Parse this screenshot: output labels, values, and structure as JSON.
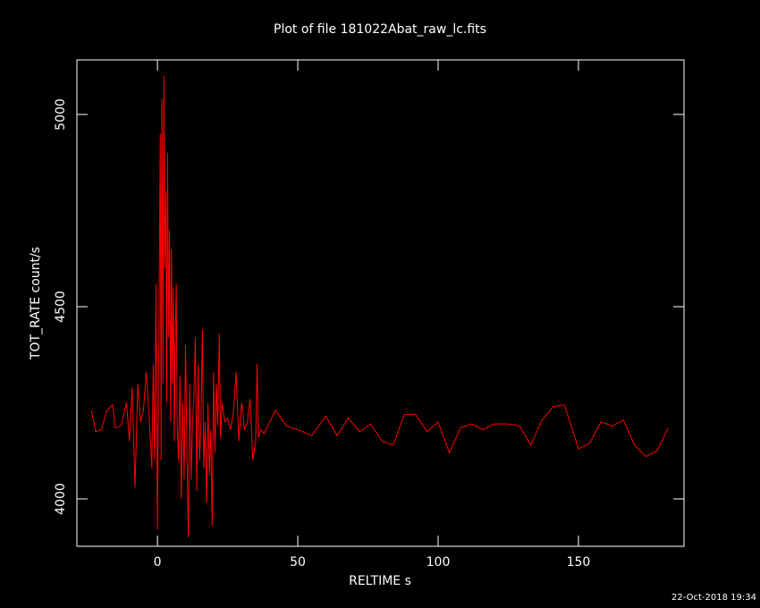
{
  "chart_data": {
    "type": "line",
    "title": "Plot of file 181022Abat_raw_lc.fits",
    "x_label": "RELTIME  s",
    "y_label": "TOT_RATE  count/s",
    "footer": "22-Oct-2018 19:34",
    "xlim": [
      -28.7,
      187.6
    ],
    "ylim": [
      3876.7,
      5141.9
    ],
    "xticks": [
      0,
      50,
      100,
      150
    ],
    "yticks": [
      4000,
      4500,
      5000
    ],
    "x": [
      -23.5,
      -22,
      -20,
      -18,
      -16,
      -15,
      -13,
      -11,
      -10,
      -9,
      -8,
      -7,
      -6,
      -5,
      -4,
      -3,
      -2,
      -1.5,
      -1,
      -0.5,
      0,
      0.5,
      1,
      1.3,
      1.6,
      2,
      2.3,
      2.6,
      3,
      3.3,
      3.6,
      4,
      4.3,
      4.7,
      5,
      5.3,
      5.7,
      6,
      6.3,
      6.7,
      7,
      7.5,
      8,
      8.5,
      9,
      9.5,
      10,
      10.5,
      11,
      11.5,
      12,
      12.5,
      13,
      13.5,
      14,
      14.5,
      15,
      15.5,
      16,
      16.5,
      17,
      17.5,
      18,
      18.5,
      19,
      19.5,
      20,
      20.5,
      21,
      21.5,
      22,
      22.5,
      23,
      24,
      25,
      26,
      27,
      28,
      29,
      30,
      31,
      32,
      33,
      34,
      35,
      35.5,
      36,
      37,
      38,
      42,
      46,
      50,
      55,
      60,
      64,
      68,
      72,
      76,
      80,
      84,
      88,
      92,
      96,
      100,
      104,
      108,
      112,
      116,
      120,
      125,
      129,
      133,
      137,
      141,
      145,
      150,
      154,
      158,
      162,
      166,
      170,
      174,
      178,
      182
    ],
    "series": [
      {
        "name": "TOT_RATE",
        "color": "#ff0000",
        "values": [
          4230,
          4175,
          4180,
          4230,
          4245,
          4185,
          4190,
          4250,
          4150,
          4290,
          4030,
          4300,
          4200,
          4230,
          4330,
          4220,
          4080,
          4350,
          4100,
          4560,
          3920,
          4400,
          4950,
          4100,
          5040,
          4300,
          5100,
          4600,
          4800,
          4250,
          4900,
          4420,
          4700,
          4200,
          4650,
          4300,
          4550,
          4150,
          4400,
          4560,
          4200,
          4100,
          4320,
          4000,
          4250,
          4050,
          4400,
          4130,
          3900,
          4300,
          4050,
          4200,
          4270,
          4420,
          4020,
          4350,
          4100,
          4200,
          4440,
          4080,
          4200,
          3990,
          4250,
          4060,
          4180,
          3930,
          4330,
          4120,
          4300,
          4190,
          4430,
          4160,
          4250,
          4200,
          4210,
          4180,
          4220,
          4330,
          4150,
          4250,
          4180,
          4200,
          4260,
          4100,
          4150,
          4350,
          4160,
          4180,
          4170,
          4230,
          4190,
          4180,
          4165,
          4215,
          4165,
          4210,
          4175,
          4195,
          4150,
          4140,
          4220,
          4220,
          4175,
          4200,
          4120,
          4185,
          4195,
          4180,
          4195,
          4195,
          4190,
          4140,
          4205,
          4240,
          4245,
          4130,
          4145,
          4200,
          4190,
          4205,
          4140,
          4110,
          4125,
          4185
        ]
      }
    ]
  }
}
